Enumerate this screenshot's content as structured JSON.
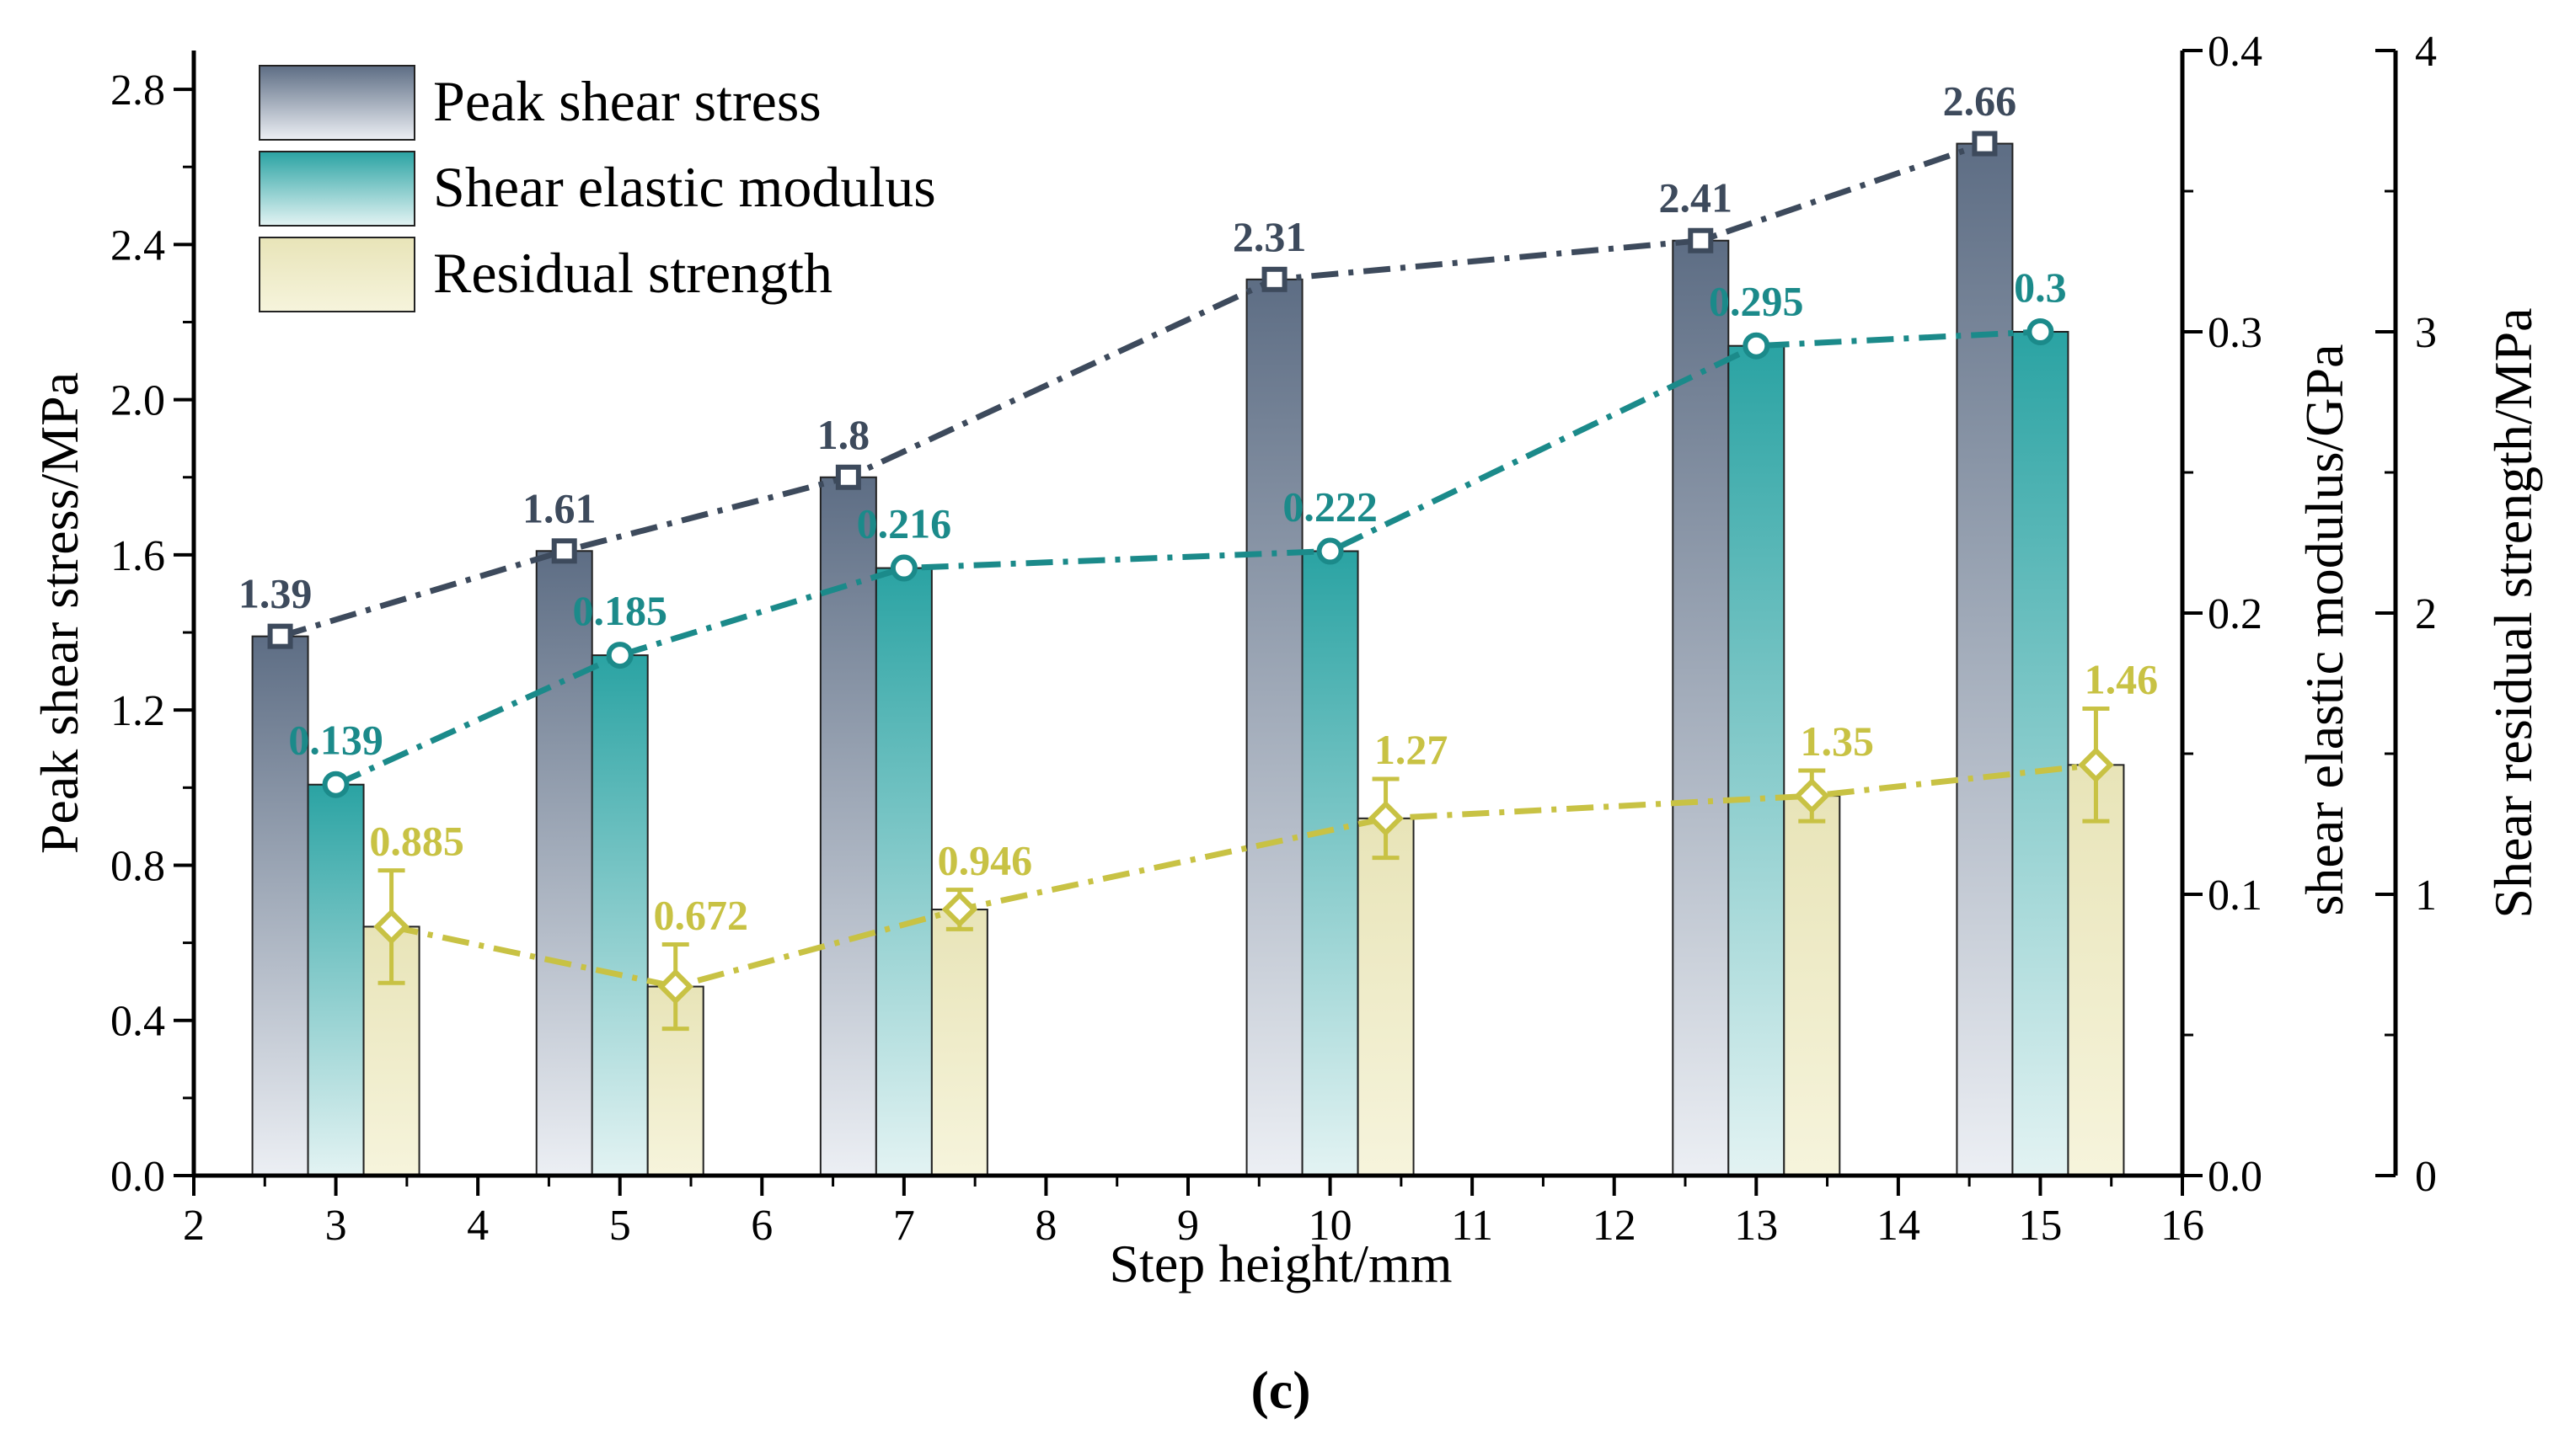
{
  "chart_data": {
    "type": "bar",
    "panel_label": "(c)",
    "xlabel": "Step height/mm",
    "x_ticks": [
      2,
      3,
      4,
      5,
      6,
      7,
      8,
      9,
      10,
      11,
      12,
      13,
      14,
      15,
      16
    ],
    "xlim": [
      2,
      16
    ],
    "categories": [
      3,
      5,
      7,
      10,
      13,
      15
    ],
    "axes": {
      "left": {
        "label": "Peak shear stress/MPa",
        "ylim": [
          0,
          2.9
        ],
        "ticks": [
          "0.0",
          "0.4",
          "0.8",
          "1.2",
          "1.6",
          "2.0",
          "2.4",
          "2.8"
        ],
        "tick_values": [
          0,
          0.4,
          0.8,
          1.2,
          1.6,
          2.0,
          2.4,
          2.8
        ]
      },
      "right1": {
        "label": "shear elastic modulus/GPa",
        "ylim": [
          0,
          0.4
        ],
        "ticks": [
          "0.0",
          "0.1",
          "0.2",
          "0.3",
          "0.4"
        ],
        "tick_values": [
          0,
          0.1,
          0.2,
          0.3,
          0.4
        ]
      },
      "right2": {
        "label": "Shear residual strength/MPa",
        "ylim": [
          0,
          4
        ],
        "ticks": [
          "0",
          "1",
          "2",
          "3",
          "4"
        ],
        "tick_values": [
          0,
          1,
          2,
          3,
          4
        ]
      }
    },
    "series": [
      {
        "name": "Peak shear stress",
        "axis": "left",
        "color": "#3d4a5c",
        "values": [
          1.39,
          1.61,
          1.8,
          2.31,
          2.41,
          2.66
        ],
        "labels": [
          "1.39",
          "1.61",
          "1.8",
          "2.31",
          "2.41",
          "2.66"
        ],
        "marker": "square"
      },
      {
        "name": "Shear elastic modulus",
        "axis": "right1",
        "color": "#1b8a8a",
        "values": [
          0.139,
          0.185,
          0.216,
          0.222,
          0.295,
          0.3
        ],
        "labels": [
          "0.139",
          "0.185",
          "0.216",
          "0.222",
          "0.295",
          "0.3"
        ],
        "marker": "circle"
      },
      {
        "name": "Residual strength",
        "axis": "right2",
        "color": "#c8c244",
        "values": [
          0.885,
          0.672,
          0.946,
          1.27,
          1.35,
          1.46
        ],
        "labels": [
          "0.885",
          "0.672",
          "0.946",
          "1.27",
          "1.35",
          "1.46"
        ],
        "error": [
          0.2,
          0.15,
          0.07,
          0.14,
          0.09,
          0.2
        ],
        "marker": "diamond"
      }
    ],
    "legend": {
      "placement": "top-left",
      "entries": [
        "Peak shear stress",
        "Shear elastic modulus",
        "Residual strength"
      ]
    },
    "colors": {
      "peak_dark": "#5d6d84",
      "peak_light": "#eceff4",
      "modulus_dark": "#2aa3a3",
      "modulus_light": "#e3f3f3",
      "residual_dark": "#e8e4b8",
      "residual_light": "#f6f4dc"
    }
  }
}
